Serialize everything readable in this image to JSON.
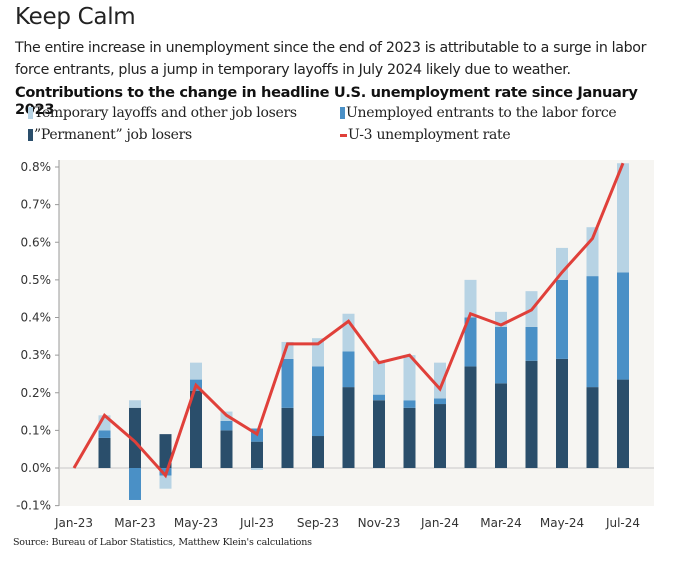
{
  "header": {
    "title": "Keep Calm",
    "subtitle": "The entire increase in unemployment since the end of 2023 is attributable to a surge in labor force entrants, plus a jump in temporary layoffs in July 2024 likely due to weather."
  },
  "source": "Source: Bureau of Labor Statistics, Matthew Klein's calculations",
  "colors": {
    "temporary": "#b7d3e4",
    "entrants": "#4a90c6",
    "permanent": "#2a4e6b",
    "line": "#e0403a",
    "plot_bg": "#f6f5f2",
    "axis": "#9a9a9a",
    "zero_line": "#c8c8c8"
  },
  "chart_data": {
    "type": "bar",
    "stacked": true,
    "title": "Contributions to the change in headline U.S. unemployment rate since January 2023",
    "xlabel": "",
    "ylabel": "",
    "ylim": [
      -0.1,
      0.8
    ],
    "yticks": [
      -0.1,
      0.0,
      0.1,
      0.2,
      0.3,
      0.4,
      0.5,
      0.6,
      0.7,
      0.8
    ],
    "ytick_labels": [
      "-0.1%",
      "0.0%",
      "0.1%",
      "0.2%",
      "0.3%",
      "0.4%",
      "0.5%",
      "0.6%",
      "0.7%",
      "0.8%"
    ],
    "categories": [
      "Jan-23",
      "Feb-23",
      "Mar-23",
      "Apr-23",
      "May-23",
      "Jun-23",
      "Jul-23",
      "Aug-23",
      "Sep-23",
      "Oct-23",
      "Nov-23",
      "Dec-23",
      "Jan-24",
      "Feb-24",
      "Mar-24",
      "Apr-24",
      "May-24",
      "Jun-24",
      "Jul-24"
    ],
    "xtick_labels": [
      "Jan-23",
      "Mar-23",
      "May-23",
      "Jul-23",
      "Sep-23",
      "Nov-23",
      "Jan-24",
      "Mar-24",
      "May-24",
      "Jul-24"
    ],
    "grid": false,
    "legend_position": "top",
    "legend": [
      {
        "key": "temporary",
        "label": "Temporary layoffs and other job losers"
      },
      {
        "key": "entrants",
        "label": "Unemployed entrants to the labor force"
      },
      {
        "key": "permanent",
        "label": "”Permanent” job losers"
      },
      {
        "key": "line",
        "label": "U-3 unemployment rate"
      }
    ],
    "series": [
      {
        "name": "”Permanent” job losers",
        "key": "permanent",
        "type": "bar",
        "values": [
          null,
          0.08,
          0.16,
          0.09,
          0.205,
          0.1,
          0.07,
          0.16,
          0.085,
          0.215,
          0.18,
          0.16,
          0.17,
          0.27,
          0.225,
          0.285,
          0.29,
          0.215,
          0.235
        ]
      },
      {
        "name": "Unemployed entrants to the labor force",
        "key": "entrants",
        "type": "bar",
        "values": [
          null,
          0.02,
          -0.085,
          -0.02,
          0.03,
          0.025,
          0.035,
          0.13,
          0.185,
          0.095,
          0.015,
          0.02,
          0.015,
          0.13,
          0.15,
          0.09,
          0.21,
          0.295,
          0.285
        ]
      },
      {
        "name": "Temporary layoffs and other job losers",
        "key": "temporary",
        "type": "bar",
        "values": [
          null,
          0.04,
          0.02,
          -0.035,
          0.045,
          0.025,
          -0.005,
          0.045,
          0.075,
          0.1,
          0.09,
          0.12,
          0.095,
          0.1,
          0.04,
          0.095,
          0.085,
          0.13,
          0.29
        ]
      },
      {
        "name": "U-3 unemployment rate",
        "key": "line",
        "type": "line",
        "values": [
          0.0,
          0.14,
          0.07,
          -0.02,
          0.22,
          0.14,
          0.09,
          0.33,
          0.33,
          0.39,
          0.28,
          0.3,
          0.21,
          0.41,
          0.38,
          0.42,
          0.52,
          0.61,
          0.81
        ]
      }
    ]
  }
}
